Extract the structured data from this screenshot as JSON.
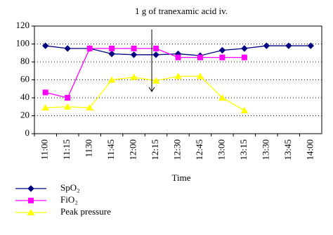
{
  "chart_data": {
    "type": "line",
    "annotation": "1 g of tranexamic acid iv.",
    "x_label": "Time",
    "categories": [
      "11:00",
      "11:15",
      "1130",
      "11:45",
      "12:00",
      "12:15",
      "12:30",
      "12:45",
      "13:00",
      "13:15",
      "13:30",
      "13:45",
      "14:00"
    ],
    "series": [
      {
        "name": "SpO₂",
        "color": "#000080",
        "marker": "diamond",
        "values": [
          98,
          95,
          95,
          89,
          88,
          88,
          89,
          87,
          93,
          95,
          98,
          98,
          98
        ]
      },
      {
        "name": "FiO₂",
        "color": "#ff00ff",
        "marker": "square",
        "values": [
          46,
          40,
          95,
          95,
          95,
          95,
          85,
          85,
          85,
          85,
          null,
          null,
          null
        ]
      },
      {
        "name": "Peak pressure",
        "color": "#ffff00",
        "marker": "triangle",
        "values": [
          29,
          30,
          29,
          60,
          63,
          59,
          64,
          64,
          40,
          26,
          null,
          null,
          null
        ]
      }
    ],
    "ylim": [
      0,
      120
    ],
    "yticks": [
      0,
      20,
      40,
      60,
      80,
      100,
      120
    ],
    "grid": true
  }
}
